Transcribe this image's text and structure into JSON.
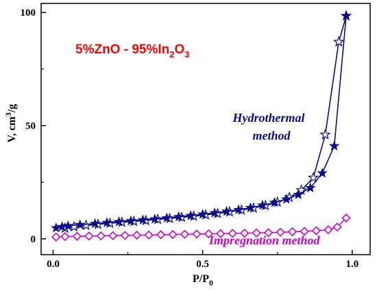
{
  "chart_data": {
    "type": "line",
    "title_parts": {
      "main": "5%ZnO - 95%In",
      "sub": "2",
      "tail": "O",
      "sub2": "3"
    },
    "xlabel_parts": {
      "main": "P/P",
      "sub": "0"
    },
    "ylabel_parts": {
      "main": "V, cm",
      "sup": "3",
      "tail": "/g"
    },
    "xlim": [
      -0.04,
      1.06
    ],
    "ylim": [
      -7,
      104
    ],
    "x_ticks": [
      0.0,
      0.5,
      1.0
    ],
    "x_tick_labels": [
      "0.0",
      "0.5",
      "1.0"
    ],
    "y_ticks": [
      0,
      50,
      100
    ],
    "y_tick_labels": [
      "0",
      "50",
      "100"
    ],
    "grid": false,
    "series": [
      {
        "name_lines": [
          "Hydrothermal",
          "method"
        ],
        "color": "#0a0a8c",
        "subseries": [
          {
            "branch": "adsorption",
            "marker": "star-filled",
            "x": [
              0.01,
              0.03,
              0.05,
              0.09,
              0.14,
              0.18,
              0.22,
              0.26,
              0.3,
              0.34,
              0.38,
              0.42,
              0.46,
              0.5,
              0.54,
              0.58,
              0.62,
              0.66,
              0.7,
              0.74,
              0.78,
              0.82,
              0.86,
              0.9,
              0.94,
              0.98
            ],
            "y": [
              4.8,
              5.3,
              5.7,
              6.2,
              6.7,
              7.1,
              7.5,
              7.9,
              8.3,
              8.7,
              9.2,
              9.7,
              10.2,
              10.8,
              11.4,
              12.1,
              12.8,
              13.7,
              14.8,
              16.0,
              17.5,
              19.5,
              22.5,
              29.0,
              41.0,
              98.5
            ]
          },
          {
            "branch": "desorption",
            "marker": "star-open",
            "x": [
              0.98,
              0.955,
              0.91,
              0.87,
              0.83,
              0.79,
              0.75,
              0.71,
              0.67,
              0.63,
              0.59,
              0.55,
              0.51,
              0.47,
              0.43,
              0.39,
              0.35,
              0.31,
              0.27,
              0.23,
              0.19,
              0.15,
              0.11,
              0.07,
              0.04
            ],
            "y": [
              98.5,
              87.0,
              46.0,
              27.0,
              21.5,
              18.3,
              16.2,
              14.7,
              13.6,
              12.7,
              11.9,
              11.2,
              10.6,
              10.0,
              9.5,
              9.0,
              8.6,
              8.1,
              7.7,
              7.3,
              6.9,
              6.4,
              5.9,
              5.3,
              4.7
            ]
          }
        ]
      },
      {
        "name": "Impregnation method",
        "color": "#cc00cc",
        "marker": "diamond",
        "x": [
          0.01,
          0.04,
          0.08,
          0.12,
          0.16,
          0.2,
          0.24,
          0.28,
          0.32,
          0.36,
          0.4,
          0.44,
          0.48,
          0.52,
          0.56,
          0.6,
          0.64,
          0.68,
          0.72,
          0.76,
          0.8,
          0.84,
          0.88,
          0.92,
          0.95,
          0.98
        ],
        "y": [
          0.8,
          1.0,
          1.1,
          1.2,
          1.3,
          1.4,
          1.5,
          1.6,
          1.7,
          1.8,
          1.9,
          2.0,
          2.1,
          2.2,
          2.3,
          2.4,
          2.5,
          2.6,
          2.7,
          2.9,
          3.1,
          3.3,
          3.6,
          4.0,
          5.2,
          9.2
        ]
      }
    ]
  }
}
